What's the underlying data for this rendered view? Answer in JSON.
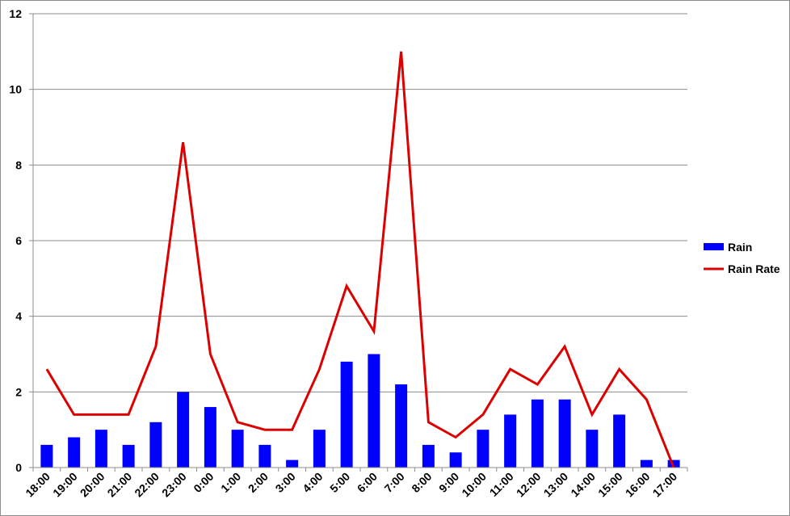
{
  "chart_data": {
    "type": "bar",
    "categories": [
      "18:00",
      "19:00",
      "20:00",
      "21:00",
      "22:00",
      "23:00",
      "0:00",
      "1:00",
      "2:00",
      "3:00",
      "4:00",
      "5:00",
      "6:00",
      "7:00",
      "8:00",
      "9:00",
      "10:00",
      "11:00",
      "12:00",
      "13:00",
      "14:00",
      "15:00",
      "16:00",
      "17:00"
    ],
    "series": [
      {
        "name": "Rain",
        "type": "bar",
        "color": "#0000ff",
        "values": [
          0.6,
          0.8,
          1.0,
          0.6,
          1.2,
          2.0,
          1.6,
          1.0,
          0.6,
          0.2,
          1.0,
          2.8,
          3.0,
          2.2,
          0.6,
          0.4,
          1.0,
          1.4,
          1.8,
          1.8,
          1.0,
          1.4,
          0.2,
          0.2
        ]
      },
      {
        "name": "Rain Rate",
        "type": "line",
        "color": "#dd0000",
        "values": [
          2.6,
          1.4,
          1.4,
          1.4,
          3.2,
          8.6,
          3.0,
          1.2,
          1.0,
          1.0,
          2.6,
          4.8,
          3.6,
          11.0,
          1.2,
          0.8,
          1.4,
          2.6,
          2.2,
          3.2,
          1.4,
          2.6,
          1.8,
          0.0
        ]
      }
    ],
    "ylim": [
      0,
      12
    ],
    "yticks": [
      0,
      2,
      4,
      6,
      8,
      10,
      12
    ],
    "grid": true,
    "legend": "right",
    "title": "",
    "xlabel": "",
    "ylabel": ""
  }
}
